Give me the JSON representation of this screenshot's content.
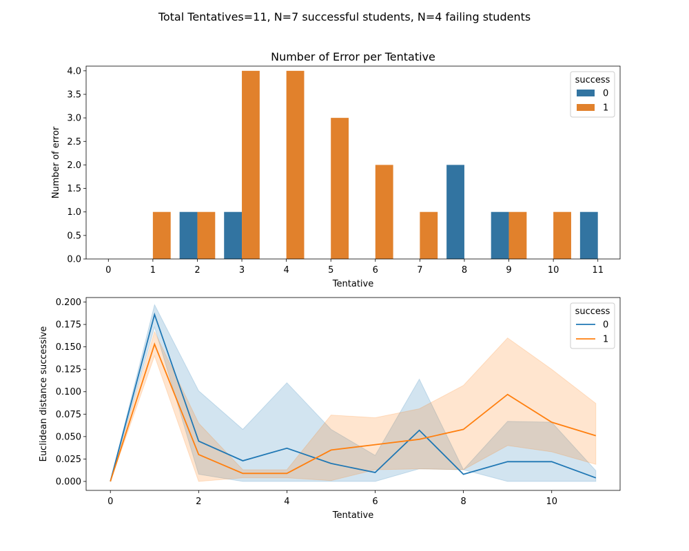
{
  "suptitle": "Total Tentatives=11, N=7 successful students, N=4 failing students",
  "colors": {
    "s0": "#1f77b4",
    "s1": "#ff7f0e",
    "bar0": "#3274a1",
    "bar1": "#e1812c"
  },
  "chart_data": [
    {
      "type": "bar",
      "title": "Number of Error per Tentative",
      "xlabel": "Tentative",
      "ylabel": "Number of error",
      "categories": [
        "0",
        "1",
        "2",
        "3",
        "4",
        "5",
        "6",
        "7",
        "8",
        "9",
        "10",
        "11"
      ],
      "ylim": [
        0,
        4.1
      ],
      "yticks": [
        0.0,
        0.5,
        1.0,
        1.5,
        2.0,
        2.5,
        3.0,
        3.5,
        4.0
      ],
      "legend": {
        "title": "success",
        "position": "top-right"
      },
      "series": [
        {
          "name": "0",
          "values": [
            0,
            0,
            1,
            1,
            0,
            0,
            0,
            0,
            2,
            1,
            0,
            1
          ]
        },
        {
          "name": "1",
          "values": [
            0,
            1,
            1,
            4,
            4,
            3,
            2,
            1,
            0,
            1,
            1,
            0
          ]
        }
      ]
    },
    {
      "type": "line",
      "title": "",
      "xlabel": "Tentative",
      "ylabel": "Euclidean distance successive",
      "x": [
        0,
        1,
        2,
        3,
        4,
        5,
        6,
        7,
        8,
        9,
        10,
        11
      ],
      "xlim": [
        -0.55,
        11.55
      ],
      "ylim": [
        -0.01,
        0.205
      ],
      "xticks": [
        0,
        2,
        4,
        6,
        8,
        10
      ],
      "yticks": [
        0.0,
        0.025,
        0.05,
        0.075,
        0.1,
        0.125,
        0.15,
        0.175,
        0.2
      ],
      "legend": {
        "title": "success",
        "position": "top-right"
      },
      "series": [
        {
          "name": "0",
          "values": [
            0,
            0.186,
            0.045,
            0.023,
            0.037,
            0.02,
            0.01,
            0.057,
            0.008,
            0.022,
            0.022,
            0.004
          ],
          "ci_low": [
            0,
            0.172,
            0.008,
            0.0,
            0.0,
            0.0,
            0.0,
            0.014,
            0.013,
            0.0,
            0.0,
            0.0
          ],
          "ci_high": [
            0,
            0.197,
            0.101,
            0.058,
            0.11,
            0.058,
            0.029,
            0.114,
            0.013,
            0.067,
            0.066,
            0.012
          ]
        },
        {
          "name": "1",
          "values": [
            0,
            0.153,
            0.03,
            0.009,
            0.009,
            0.035,
            0.041,
            0.047,
            0.058,
            0.097,
            0.066,
            0.051
          ],
          "ci_low": [
            0,
            0.14,
            0.0,
            0.004,
            0.004,
            0.001,
            0.013,
            0.014,
            0.013,
            0.04,
            0.033,
            0.019
          ],
          "ci_high": [
            0,
            0.167,
            0.065,
            0.013,
            0.013,
            0.074,
            0.071,
            0.081,
            0.107,
            0.16,
            0.125,
            0.087
          ]
        }
      ]
    }
  ]
}
